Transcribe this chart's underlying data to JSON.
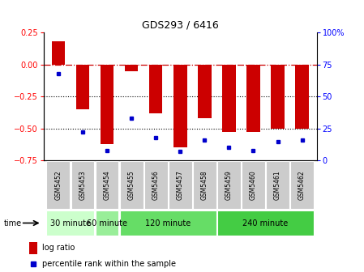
{
  "title": "GDS293 / 6416",
  "samples": [
    "GSM5452",
    "GSM5453",
    "GSM5454",
    "GSM5455",
    "GSM5456",
    "GSM5457",
    "GSM5458",
    "GSM5459",
    "GSM5460",
    "GSM5461",
    "GSM5462"
  ],
  "log_ratio": [
    0.18,
    -0.35,
    -0.62,
    -0.05,
    -0.38,
    -0.65,
    -0.42,
    -0.53,
    -0.53,
    -0.5,
    -0.5
  ],
  "percentile": [
    68,
    22,
    8,
    33,
    18,
    7,
    16,
    10,
    8,
    15,
    16
  ],
  "bar_color": "#cc0000",
  "dot_color": "#0000cc",
  "ylim_left": [
    -0.75,
    0.25
  ],
  "ylim_right": [
    0,
    100
  ],
  "yticks_left": [
    0.25,
    0,
    -0.25,
    -0.5,
    -0.75
  ],
  "yticks_right": [
    100,
    75,
    50,
    25,
    0
  ],
  "ytick_right_labels": [
    "100%",
    "75",
    "50",
    "25",
    "0"
  ],
  "dotted_hlines": [
    -0.25,
    -0.5
  ],
  "groups": [
    {
      "label": "30 minute",
      "start": 0,
      "end": 1,
      "color": "#ccffcc"
    },
    {
      "label": "60 minute",
      "start": 2,
      "end": 2,
      "color": "#99ee99"
    },
    {
      "label": "120 minute",
      "start": 3,
      "end": 6,
      "color": "#66dd66"
    },
    {
      "label": "240 minute",
      "start": 7,
      "end": 10,
      "color": "#44cc44"
    }
  ],
  "time_label": "time",
  "legend_log_ratio": "log ratio",
  "legend_percentile": "percentile rank within the sample",
  "background_color": "#ffffff",
  "sample_box_color": "#cccccc",
  "bar_width": 0.55
}
